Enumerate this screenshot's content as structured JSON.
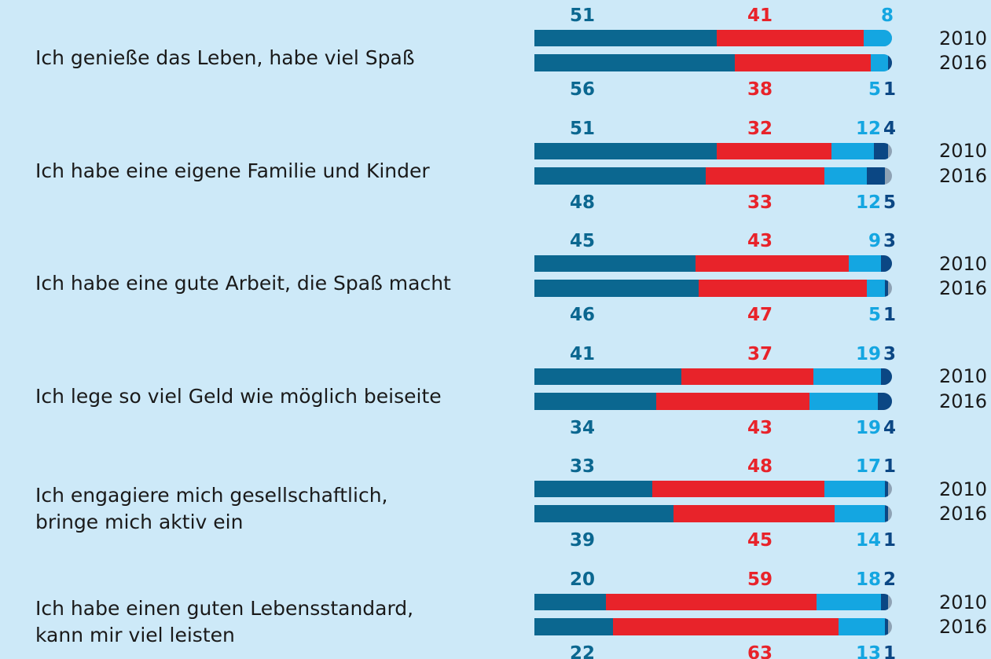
{
  "chart_data": {
    "type": "bar",
    "orientation": "horizontal",
    "stacked": true,
    "categories": [
      "Ich genieße das Leben, habe viel Spaß",
      "Ich habe eine eigene Familie und Kinder",
      "Ich habe eine gute Arbeit, die Spaß macht",
      "Ich lege so viel Geld wie möglich beiseite",
      "Ich engagiere mich gesellschaftlich,\nbringe mich aktiv ein",
      "Ich habe einen guten Lebensstandard,\nkann mir viel leisten"
    ],
    "xlim": [
      0,
      100
    ],
    "track_color": "#8fa2b4",
    "series": [
      {
        "name": "2010",
        "segments": [
          {
            "color": "#0b6790",
            "values": [
              51,
              51,
              45,
              41,
              33,
              20
            ]
          },
          {
            "color": "#e8232a",
            "values": [
              41,
              32,
              43,
              37,
              48,
              59
            ]
          },
          {
            "color": "#14a6e1",
            "values": [
              8,
              12,
              9,
              19,
              17,
              18
            ]
          },
          {
            "color": "#0b4784",
            "values": [
              null,
              4,
              3,
              3,
              1,
              2
            ]
          }
        ]
      },
      {
        "name": "2016",
        "segments": [
          {
            "color": "#0b6790",
            "values": [
              56,
              48,
              46,
              34,
              39,
              22
            ]
          },
          {
            "color": "#e8232a",
            "values": [
              38,
              33,
              47,
              43,
              45,
              63
            ]
          },
          {
            "color": "#14a6e1",
            "values": [
              5,
              12,
              5,
              19,
              14,
              13
            ]
          },
          {
            "color": "#0b4784",
            "values": [
              1,
              5,
              1,
              4,
              1,
              1
            ]
          }
        ]
      }
    ]
  }
}
